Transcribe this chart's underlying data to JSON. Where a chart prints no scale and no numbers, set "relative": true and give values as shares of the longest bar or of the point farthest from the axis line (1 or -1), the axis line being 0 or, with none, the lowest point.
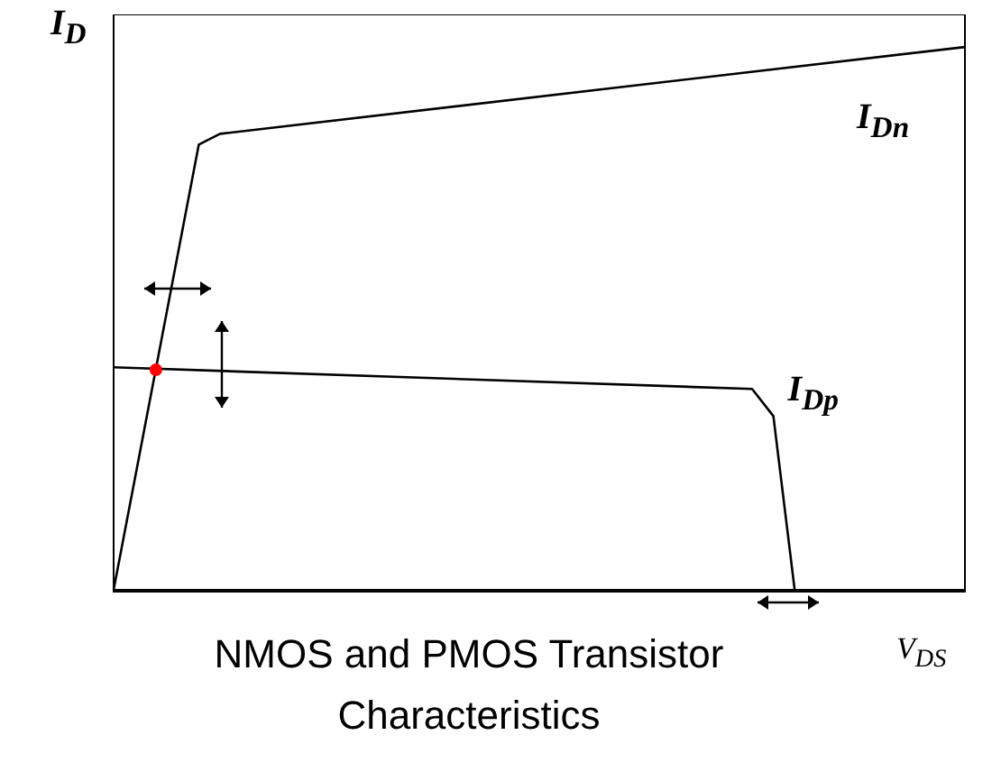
{
  "chart_data": {
    "type": "line",
    "relative": true,
    "title": "NMOS and PMOS Transistor Characteristics",
    "xlabel": "V$_{DS}$",
    "ylabel": "I$_{D}$",
    "marker": "none",
    "categories": [
      null,
      null,
      null,
      null,
      null,
      null,
      null,
      null,
      null,
      null,
      null,
      null,
      null,
      null,
      null,
      null,
      null,
      null,
      null,
      null,
      null,
      null,
      null,
      null,
      null,
      null,
      null,
      null,
      null,
      null,
      null,
      null,
      null,
      null,
      null,
      null,
      null,
      null,
      null,
      null,
      null
    ],
    "series": [
      {
        "name": "I$_{Dn}$",
        "color": "#000000",
        "values": [
          0,
          null,
          null,
          null,
          0.82,
          0.84,
          null,
          null,
          null,
          null,
          null,
          null,
          null,
          null,
          null,
          null,
          null,
          null,
          null,
          null,
          null,
          null,
          null,
          null,
          null,
          null,
          null,
          null,
          null,
          null,
          null,
          null,
          null,
          null,
          null,
          null,
          null,
          null,
          null,
          null,
          1
        ]
      },
      {
        "name": "I$_{Dp}$",
        "color": "#000000",
        "values": [
          0.41,
          null,
          null,
          null,
          null,
          null,
          null,
          null,
          null,
          null,
          null,
          null,
          null,
          null,
          null,
          null,
          null,
          null,
          null,
          null,
          null,
          null,
          null,
          null,
          null,
          null,
          null,
          null,
          null,
          null,
          0.37,
          0.32,
          0,
          null,
          null,
          null,
          null,
          null,
          null,
          null,
          null
        ]
      }
    ]
  }
}
